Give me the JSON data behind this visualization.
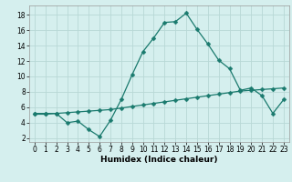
{
  "title": "",
  "xlabel": "Humidex (Indice chaleur)",
  "ylabel": "",
  "bg_color": "#d5efee",
  "grid_color": "#b8d8d6",
  "line_color": "#1a7a6e",
  "x_ticks": [
    0,
    1,
    2,
    3,
    4,
    5,
    6,
    7,
    8,
    9,
    10,
    11,
    12,
    13,
    14,
    15,
    16,
    17,
    18,
    19,
    20,
    21,
    22,
    23
  ],
  "y_ticks": [
    2,
    4,
    6,
    8,
    10,
    12,
    14,
    16,
    18
  ],
  "xlim": [
    -0.5,
    23.5
  ],
  "ylim": [
    1.5,
    19.2
  ],
  "curve1_x": [
    0,
    1,
    2,
    3,
    4,
    5,
    6,
    7,
    8,
    9,
    10,
    11,
    12,
    13,
    14,
    15,
    16,
    17,
    18,
    19,
    20,
    21,
    22,
    23
  ],
  "curve1_y": [
    5.2,
    5.2,
    5.2,
    4.0,
    4.2,
    3.1,
    2.2,
    4.3,
    7.0,
    10.2,
    13.2,
    15.0,
    17.0,
    17.1,
    18.2,
    16.1,
    14.2,
    12.1,
    11.0,
    8.2,
    8.5,
    7.5,
    5.2,
    7.0
  ],
  "curve2_x": [
    0,
    1,
    2,
    3,
    4,
    5,
    6,
    7,
    8,
    9,
    10,
    11,
    12,
    13,
    14,
    15,
    16,
    17,
    18,
    19,
    20,
    21,
    22,
    23
  ],
  "curve2_y": [
    5.1,
    5.1,
    5.2,
    5.3,
    5.4,
    5.5,
    5.6,
    5.7,
    5.9,
    6.1,
    6.3,
    6.5,
    6.7,
    6.9,
    7.1,
    7.3,
    7.5,
    7.7,
    7.9,
    8.1,
    8.2,
    8.3,
    8.4,
    8.5
  ],
  "marker": "D",
  "markersize": 2.5,
  "linewidth": 0.9,
  "tick_fontsize": 5.5,
  "xlabel_fontsize": 6.5
}
